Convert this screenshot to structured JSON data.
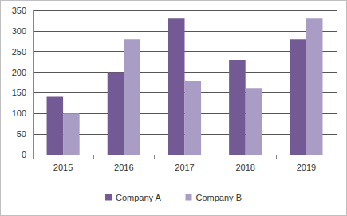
{
  "chart_data": {
    "type": "bar",
    "categories": [
      "2015",
      "2016",
      "2017",
      "2018",
      "2019"
    ],
    "series": [
      {
        "name": "Company A",
        "color": "#735a94",
        "values": [
          140,
          200,
          330,
          230,
          280
        ]
      },
      {
        "name": "Company B",
        "color": "#a99cc5",
        "values": [
          100,
          280,
          180,
          160,
          330
        ]
      }
    ],
    "ylim": [
      0,
      350
    ],
    "yticks": [
      0,
      50,
      100,
      150,
      200,
      250,
      300,
      350
    ],
    "grid": true,
    "legend": "bottom"
  }
}
